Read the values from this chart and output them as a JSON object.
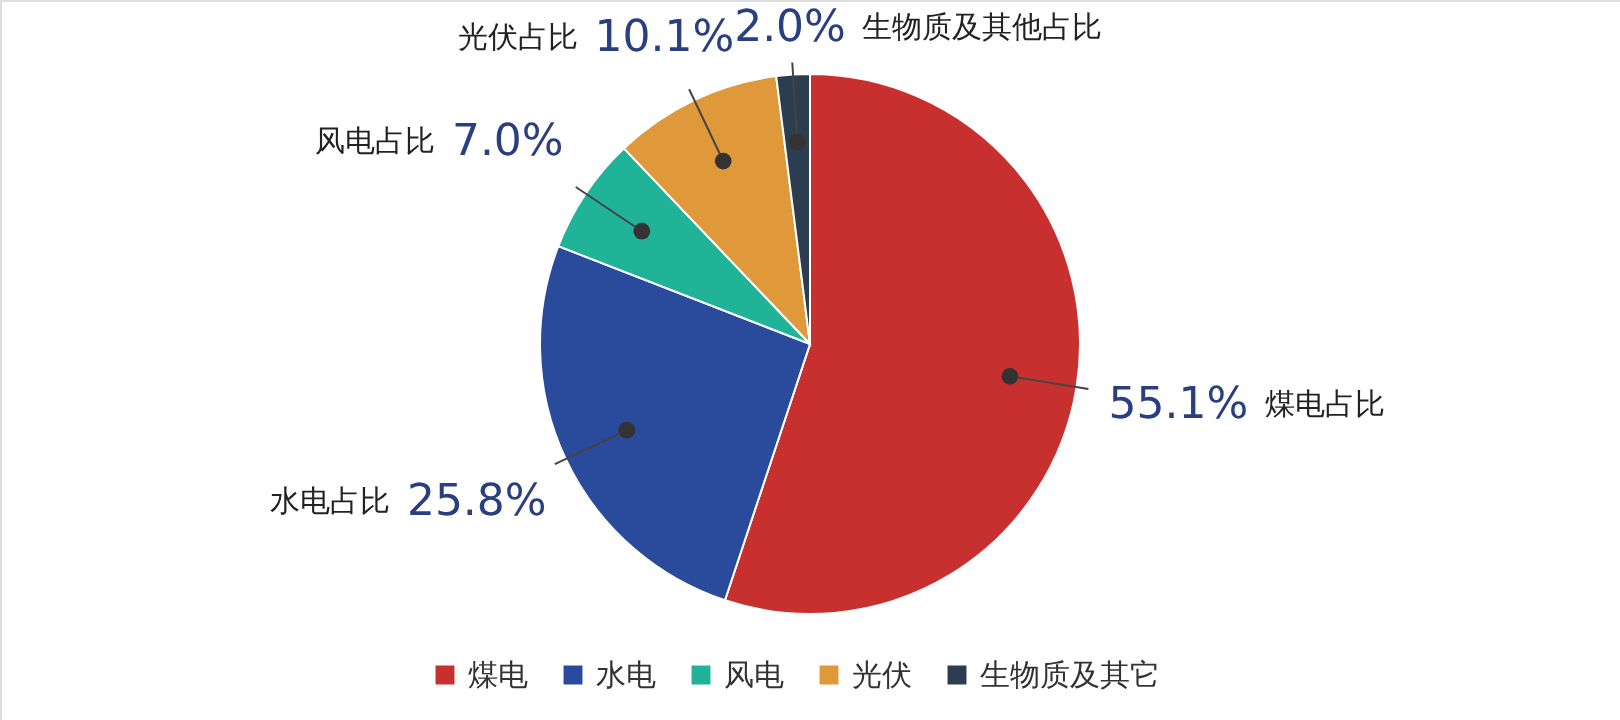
{
  "chart_data": {
    "type": "pie",
    "categories": [
      "煤电",
      "水电",
      "风电",
      "光伏",
      "生物质及其它"
    ],
    "values": [
      55.1,
      25.8,
      7.0,
      10.1,
      2.0
    ],
    "colors": [
      "#c7302e",
      "#2a4a9b",
      "#20b398",
      "#df983a",
      "#2b3d4f"
    ],
    "value_labels": [
      "55.1%",
      "25.8%",
      "7.0%",
      "10.1%",
      "2.0%"
    ],
    "annotations": [
      "煤电占比",
      "水电占比",
      "风电占比",
      "光伏占比",
      "生物质及其他占比"
    ],
    "legend": "bottom"
  }
}
